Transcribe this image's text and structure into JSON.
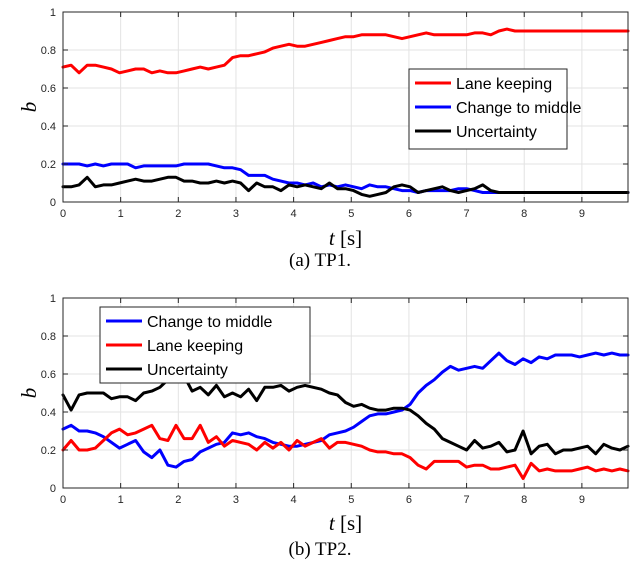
{
  "chart_data": [
    {
      "type": "line",
      "caption": "(a) TP1.",
      "xlabel": "t",
      "xlabel_unit": "[s]",
      "ylabel": "b",
      "xlim": [
        0,
        9.8
      ],
      "ylim": [
        0,
        1
      ],
      "xticks": [
        0,
        1,
        2,
        3,
        4,
        5,
        6,
        7,
        8,
        9
      ],
      "yticks": [
        0,
        0.2,
        0.4,
        0.6,
        0.8,
        1
      ],
      "grid": true,
      "legend_position": "center-right",
      "series": [
        {
          "name": "Lane keeping",
          "color": "#ff0000",
          "x": [
            0,
            0.14,
            0.28,
            0.42,
            0.56,
            0.7,
            0.84,
            0.98,
            1.12,
            1.26,
            1.4,
            1.54,
            1.68,
            1.82,
            1.96,
            2.1,
            2.24,
            2.38,
            2.52,
            2.66,
            2.8,
            2.94,
            3.08,
            3.22,
            3.36,
            3.5,
            3.64,
            3.78,
            3.92,
            4.06,
            4.2,
            4.34,
            4.48,
            4.62,
            4.76,
            4.9,
            5.04,
            5.18,
            5.32,
            5.46,
            5.6,
            5.74,
            5.88,
            6.02,
            6.16,
            6.3,
            6.44,
            6.58,
            6.72,
            6.86,
            7,
            7.14,
            7.28,
            7.42,
            7.56,
            7.7,
            7.84,
            8,
            8.5,
            9,
            9.5,
            9.8
          ],
          "y": [
            0.71,
            0.72,
            0.68,
            0.72,
            0.72,
            0.71,
            0.7,
            0.68,
            0.69,
            0.7,
            0.7,
            0.68,
            0.69,
            0.68,
            0.68,
            0.69,
            0.7,
            0.71,
            0.7,
            0.71,
            0.72,
            0.76,
            0.77,
            0.77,
            0.78,
            0.79,
            0.81,
            0.82,
            0.83,
            0.82,
            0.82,
            0.83,
            0.84,
            0.85,
            0.86,
            0.87,
            0.87,
            0.88,
            0.88,
            0.88,
            0.88,
            0.87,
            0.86,
            0.87,
            0.88,
            0.89,
            0.88,
            0.88,
            0.88,
            0.88,
            0.88,
            0.89,
            0.89,
            0.88,
            0.9,
            0.91,
            0.9,
            0.9,
            0.9,
            0.9,
            0.9,
            0.9
          ]
        },
        {
          "name": "Change to middle",
          "color": "#0000ff",
          "x": [
            0,
            0.14,
            0.28,
            0.42,
            0.56,
            0.7,
            0.84,
            0.98,
            1.12,
            1.26,
            1.4,
            1.54,
            1.68,
            1.82,
            1.96,
            2.1,
            2.24,
            2.38,
            2.52,
            2.66,
            2.8,
            2.94,
            3.08,
            3.22,
            3.36,
            3.5,
            3.64,
            3.78,
            3.92,
            4.06,
            4.2,
            4.34,
            4.48,
            4.62,
            4.76,
            4.9,
            5.04,
            5.18,
            5.32,
            5.46,
            5.6,
            5.74,
            5.88,
            6.02,
            6.16,
            6.3,
            6.44,
            6.58,
            6.72,
            6.86,
            7,
            7.14,
            7.28,
            7.42,
            7.56,
            7.7,
            7.84,
            8,
            8.5,
            9,
            9.5,
            9.8
          ],
          "y": [
            0.2,
            0.2,
            0.2,
            0.19,
            0.2,
            0.19,
            0.2,
            0.2,
            0.2,
            0.18,
            0.19,
            0.19,
            0.19,
            0.19,
            0.19,
            0.2,
            0.2,
            0.2,
            0.2,
            0.19,
            0.18,
            0.18,
            0.17,
            0.14,
            0.14,
            0.14,
            0.12,
            0.11,
            0.1,
            0.1,
            0.09,
            0.1,
            0.08,
            0.09,
            0.08,
            0.09,
            0.08,
            0.07,
            0.09,
            0.08,
            0.08,
            0.07,
            0.06,
            0.06,
            0.05,
            0.06,
            0.06,
            0.06,
            0.06,
            0.07,
            0.07,
            0.06,
            0.05,
            0.05,
            0.05,
            0.05,
            0.05,
            0.05,
            0.05,
            0.05,
            0.05,
            0.05
          ]
        },
        {
          "name": "Uncertainty",
          "color": "#000000",
          "x": [
            0,
            0.14,
            0.28,
            0.42,
            0.56,
            0.7,
            0.84,
            0.98,
            1.12,
            1.26,
            1.4,
            1.54,
            1.68,
            1.82,
            1.96,
            2.1,
            2.24,
            2.38,
            2.52,
            2.66,
            2.8,
            2.94,
            3.08,
            3.22,
            3.36,
            3.5,
            3.64,
            3.78,
            3.92,
            4.06,
            4.2,
            4.34,
            4.48,
            4.62,
            4.76,
            4.9,
            5.04,
            5.18,
            5.32,
            5.46,
            5.6,
            5.74,
            5.88,
            6.02,
            6.16,
            6.3,
            6.44,
            6.58,
            6.72,
            6.86,
            7,
            7.14,
            7.28,
            7.42,
            7.56,
            7.7,
            7.84,
            8,
            8.5,
            9,
            9.5,
            9.8
          ],
          "y": [
            0.08,
            0.08,
            0.09,
            0.13,
            0.08,
            0.09,
            0.09,
            0.1,
            0.11,
            0.12,
            0.11,
            0.11,
            0.12,
            0.13,
            0.13,
            0.11,
            0.11,
            0.1,
            0.1,
            0.11,
            0.1,
            0.11,
            0.1,
            0.06,
            0.1,
            0.08,
            0.08,
            0.06,
            0.09,
            0.08,
            0.09,
            0.08,
            0.07,
            0.1,
            0.07,
            0.07,
            0.06,
            0.04,
            0.03,
            0.04,
            0.05,
            0.08,
            0.09,
            0.08,
            0.05,
            0.06,
            0.07,
            0.08,
            0.06,
            0.05,
            0.06,
            0.07,
            0.09,
            0.06,
            0.05,
            0.05,
            0.05,
            0.05,
            0.05,
            0.05,
            0.05,
            0.05
          ]
        }
      ]
    },
    {
      "type": "line",
      "caption": "(b) TP2.",
      "xlabel": "t",
      "xlabel_unit": "[s]",
      "ylabel": "b",
      "xlim": [
        0,
        9.8
      ],
      "ylim": [
        0,
        1
      ],
      "xticks": [
        0,
        1,
        2,
        3,
        4,
        5,
        6,
        7,
        8,
        9
      ],
      "yticks": [
        0,
        0.2,
        0.4,
        0.6,
        0.8,
        1
      ],
      "grid": true,
      "legend_position": "top-left",
      "series": [
        {
          "name": "Change to middle",
          "color": "#0000ff",
          "x": [
            0,
            0.14,
            0.28,
            0.42,
            0.56,
            0.7,
            0.84,
            0.98,
            1.12,
            1.26,
            1.4,
            1.54,
            1.68,
            1.82,
            1.96,
            2.1,
            2.24,
            2.38,
            2.52,
            2.66,
            2.8,
            2.94,
            3.08,
            3.22,
            3.36,
            3.5,
            3.64,
            3.78,
            3.92,
            4.06,
            4.2,
            4.34,
            4.48,
            4.62,
            4.76,
            4.9,
            5.04,
            5.18,
            5.32,
            5.46,
            5.6,
            5.74,
            5.88,
            6.02,
            6.16,
            6.3,
            6.44,
            6.58,
            6.72,
            6.86,
            7,
            7.14,
            7.28,
            7.42,
            7.56,
            7.7,
            7.84,
            7.98,
            8.12,
            8.26,
            8.4,
            8.54,
            8.68,
            8.82,
            8.96,
            9.1,
            9.24,
            9.38,
            9.52,
            9.66,
            9.8
          ],
          "y": [
            0.31,
            0.33,
            0.3,
            0.3,
            0.29,
            0.27,
            0.24,
            0.21,
            0.23,
            0.25,
            0.19,
            0.16,
            0.2,
            0.12,
            0.11,
            0.14,
            0.15,
            0.19,
            0.21,
            0.23,
            0.24,
            0.29,
            0.28,
            0.29,
            0.27,
            0.26,
            0.24,
            0.23,
            0.22,
            0.22,
            0.23,
            0.24,
            0.25,
            0.28,
            0.29,
            0.3,
            0.32,
            0.35,
            0.38,
            0.39,
            0.39,
            0.4,
            0.41,
            0.44,
            0.5,
            0.54,
            0.57,
            0.61,
            0.64,
            0.62,
            0.63,
            0.64,
            0.63,
            0.67,
            0.71,
            0.67,
            0.65,
            0.68,
            0.66,
            0.69,
            0.68,
            0.7,
            0.7,
            0.7,
            0.69,
            0.7,
            0.71,
            0.7,
            0.71,
            0.7,
            0.7
          ]
        },
        {
          "name": "Lane keeping",
          "color": "#ff0000",
          "x": [
            0,
            0.14,
            0.28,
            0.42,
            0.56,
            0.7,
            0.84,
            0.98,
            1.12,
            1.26,
            1.4,
            1.54,
            1.68,
            1.82,
            1.96,
            2.1,
            2.24,
            2.38,
            2.52,
            2.66,
            2.8,
            2.94,
            3.08,
            3.22,
            3.36,
            3.5,
            3.64,
            3.78,
            3.92,
            4.06,
            4.2,
            4.34,
            4.48,
            4.62,
            4.76,
            4.9,
            5.04,
            5.18,
            5.32,
            5.46,
            5.6,
            5.74,
            5.88,
            6.02,
            6.16,
            6.3,
            6.44,
            6.58,
            6.72,
            6.86,
            7,
            7.14,
            7.28,
            7.42,
            7.56,
            7.7,
            7.84,
            7.98,
            8.12,
            8.26,
            8.4,
            8.54,
            8.68,
            8.82,
            8.96,
            9.1,
            9.24,
            9.38,
            9.52,
            9.66,
            9.8
          ],
          "y": [
            0.2,
            0.25,
            0.2,
            0.2,
            0.21,
            0.25,
            0.29,
            0.31,
            0.28,
            0.29,
            0.31,
            0.33,
            0.26,
            0.25,
            0.33,
            0.26,
            0.26,
            0.33,
            0.24,
            0.27,
            0.22,
            0.25,
            0.24,
            0.23,
            0.2,
            0.24,
            0.21,
            0.24,
            0.2,
            0.25,
            0.22,
            0.24,
            0.26,
            0.21,
            0.24,
            0.24,
            0.23,
            0.22,
            0.2,
            0.19,
            0.19,
            0.18,
            0.18,
            0.16,
            0.12,
            0.1,
            0.14,
            0.14,
            0.14,
            0.14,
            0.11,
            0.12,
            0.12,
            0.1,
            0.1,
            0.11,
            0.12,
            0.05,
            0.13,
            0.09,
            0.1,
            0.09,
            0.09,
            0.09,
            0.1,
            0.11,
            0.09,
            0.1,
            0.09,
            0.1,
            0.09
          ]
        },
        {
          "name": "Uncertainty",
          "color": "#000000",
          "x": [
            0,
            0.14,
            0.28,
            0.42,
            0.56,
            0.7,
            0.84,
            0.98,
            1.12,
            1.26,
            1.4,
            1.54,
            1.68,
            1.82,
            1.96,
            2.1,
            2.24,
            2.38,
            2.52,
            2.66,
            2.8,
            2.94,
            3.08,
            3.22,
            3.36,
            3.5,
            3.64,
            3.78,
            3.92,
            4.06,
            4.2,
            4.34,
            4.48,
            4.62,
            4.76,
            4.9,
            5.04,
            5.18,
            5.32,
            5.46,
            5.6,
            5.74,
            5.88,
            6.02,
            6.16,
            6.3,
            6.44,
            6.58,
            6.72,
            6.86,
            7,
            7.14,
            7.28,
            7.42,
            7.56,
            7.7,
            7.84,
            7.98,
            8.12,
            8.26,
            8.4,
            8.54,
            8.68,
            8.82,
            8.96,
            9.1,
            9.24,
            9.38,
            9.52,
            9.66,
            9.8
          ],
          "y": [
            0.49,
            0.41,
            0.49,
            0.5,
            0.5,
            0.5,
            0.47,
            0.48,
            0.48,
            0.46,
            0.5,
            0.51,
            0.53,
            0.57,
            0.57,
            0.59,
            0.51,
            0.53,
            0.49,
            0.54,
            0.48,
            0.5,
            0.48,
            0.52,
            0.46,
            0.53,
            0.53,
            0.54,
            0.51,
            0.53,
            0.54,
            0.53,
            0.52,
            0.5,
            0.49,
            0.45,
            0.43,
            0.44,
            0.42,
            0.41,
            0.41,
            0.42,
            0.42,
            0.41,
            0.38,
            0.34,
            0.31,
            0.26,
            0.24,
            0.22,
            0.2,
            0.25,
            0.21,
            0.22,
            0.24,
            0.19,
            0.2,
            0.3,
            0.18,
            0.22,
            0.23,
            0.18,
            0.2,
            0.2,
            0.21,
            0.22,
            0.18,
            0.23,
            0.21,
            0.2,
            0.22
          ]
        }
      ]
    }
  ]
}
